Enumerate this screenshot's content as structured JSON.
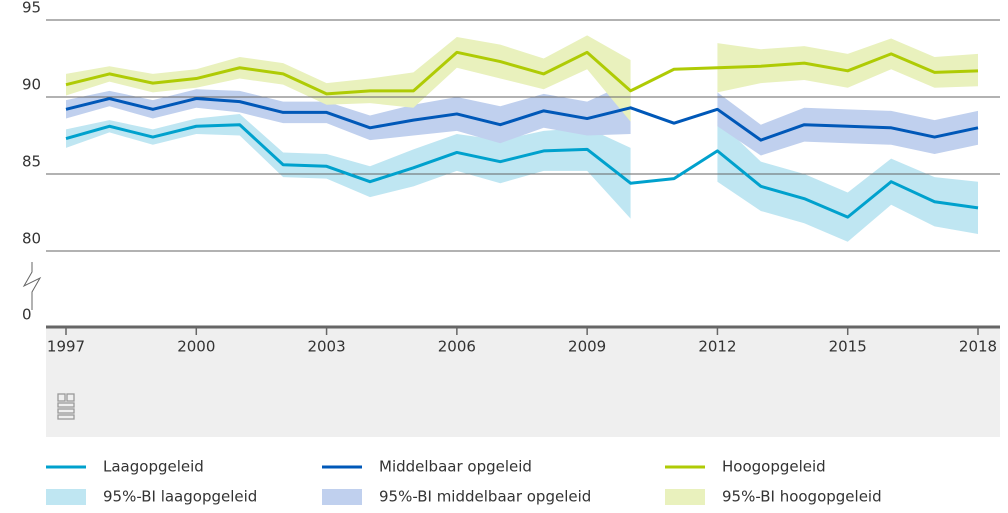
{
  "chart_data": {
    "type": "line",
    "x": [
      1997,
      1998,
      1999,
      2000,
      2001,
      2002,
      2003,
      2004,
      2005,
      2006,
      2007,
      2008,
      2009,
      2010,
      2011,
      2012,
      2013,
      2014,
      2015,
      2016,
      2017,
      2018
    ],
    "xlim": [
      1997,
      2018
    ],
    "xticks": [
      1997,
      2000,
      2003,
      2006,
      2009,
      2012,
      2015,
      2018
    ],
    "ylim": [
      0,
      95
    ],
    "axis_break": [
      0,
      80
    ],
    "yticks": [
      0,
      80,
      85,
      90,
      95
    ],
    "grid": true,
    "series": [
      {
        "name": "Laagopgeleid",
        "color": "#00a1cd",
        "values": [
          87.3,
          88.1,
          87.4,
          88.1,
          88.2,
          85.6,
          85.5,
          84.5,
          85.4,
          86.4,
          85.8,
          86.5,
          86.6,
          84.4,
          84.7,
          86.5,
          84.2,
          83.4,
          82.2,
          84.5,
          83.2,
          82.8
        ]
      },
      {
        "name": "Middelbaar opgeleid",
        "color": "#0058b8",
        "values": [
          89.2,
          89.9,
          89.2,
          89.9,
          89.7,
          89.0,
          89.0,
          88.0,
          88.5,
          88.9,
          88.2,
          89.1,
          88.6,
          89.3,
          88.3,
          89.2,
          87.2,
          88.2,
          88.1,
          88.0,
          87.4,
          88.0
        ]
      },
      {
        "name": "Hoogopgeleid",
        "color": "#afcb05",
        "values": [
          90.8,
          91.5,
          90.9,
          91.2,
          91.9,
          91.5,
          90.2,
          90.4,
          90.4,
          92.9,
          92.3,
          91.5,
          92.9,
          90.4,
          91.8,
          91.9,
          92.0,
          92.2,
          91.7,
          92.8,
          91.6,
          91.7
        ]
      }
    ],
    "bands": [
      {
        "name": "95%-BI laagopgeleid",
        "color": "#bfe6f2",
        "lower": [
          86.7,
          87.7,
          86.9,
          87.6,
          87.5,
          84.8,
          84.7,
          83.5,
          84.2,
          85.2,
          84.4,
          85.2,
          85.2,
          82.1,
          null,
          84.5,
          82.6,
          81.8,
          80.6,
          83.0,
          81.6,
          81.1
        ],
        "upper": [
          87.9,
          88.5,
          87.9,
          88.6,
          88.9,
          86.4,
          86.3,
          85.5,
          86.6,
          87.6,
          87.2,
          87.8,
          88.0,
          86.7,
          null,
          88.5,
          85.8,
          85.0,
          83.8,
          86.0,
          84.8,
          84.5
        ]
      },
      {
        "name": "95%-BI middelbaar opgeleid",
        "color": "#c0d0ee",
        "lower": [
          88.6,
          89.4,
          88.6,
          89.3,
          89.0,
          88.3,
          88.3,
          87.2,
          87.5,
          87.8,
          87.0,
          88.0,
          87.5,
          87.6,
          null,
          88.1,
          86.2,
          87.1,
          87.0,
          86.9,
          86.3,
          86.9
        ],
        "upper": [
          89.8,
          90.4,
          89.8,
          90.5,
          90.4,
          89.7,
          89.7,
          88.8,
          89.5,
          90.0,
          89.4,
          90.2,
          89.7,
          91.0,
          null,
          90.3,
          88.2,
          89.3,
          89.2,
          89.1,
          88.5,
          89.1
        ]
      },
      {
        "name": "95%-BI hoogopgeleid",
        "color": "#e9f1bd",
        "lower": [
          90.1,
          91.0,
          90.3,
          90.6,
          91.2,
          90.8,
          89.5,
          89.6,
          89.3,
          91.9,
          91.2,
          90.5,
          91.8,
          88.4,
          null,
          90.3,
          90.9,
          91.1,
          90.6,
          91.8,
          90.6,
          90.7
        ],
        "upper": [
          91.5,
          92.0,
          91.5,
          91.8,
          92.6,
          92.2,
          90.9,
          91.2,
          91.6,
          93.9,
          93.4,
          92.5,
          94.0,
          92.4,
          null,
          93.5,
          93.1,
          93.3,
          92.8,
          93.8,
          92.6,
          92.8
        ]
      }
    ]
  }
}
